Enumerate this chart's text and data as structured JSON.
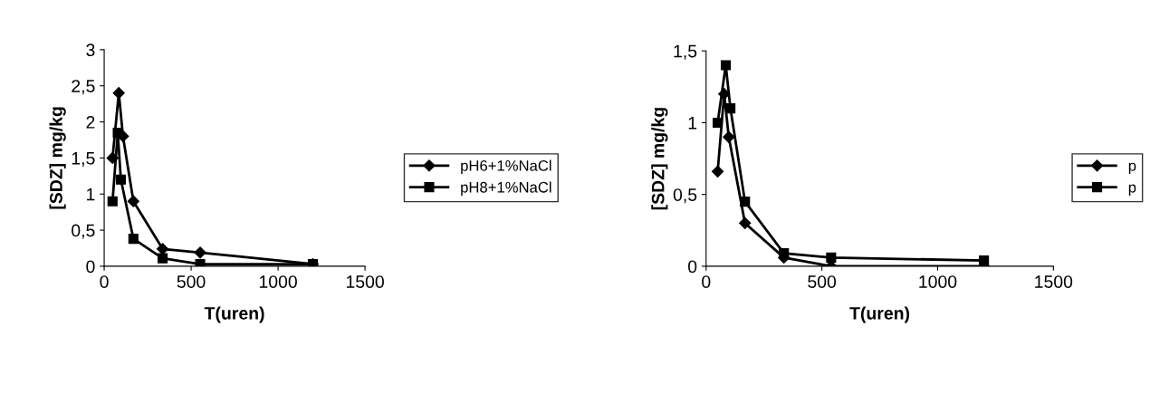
{
  "chart_data": [
    {
      "type": "line",
      "xlabel": "T(uren)",
      "ylabel": "[SDZ] mg/kg",
      "xlim": [
        0,
        1500
      ],
      "xticks": [
        0,
        500,
        1000,
        1500
      ],
      "ylim": [
        0,
        3
      ],
      "yticks": [
        0,
        {
          "value": 0.5,
          "label": "0,5"
        },
        1,
        {
          "value": 1.5,
          "label": "1,5"
        },
        2,
        {
          "value": 2.5,
          "label": "2,5"
        },
        3
      ],
      "legend": "right",
      "grid": false,
      "series": [
        {
          "name": "pH6+1%NaCl",
          "color": "#000000",
          "marker": "diamond",
          "x": [
            48,
            84,
            108,
            168,
            336,
            552,
            1200
          ],
          "values": [
            1.5,
            2.4,
            1.8,
            0.9,
            0.24,
            0.19,
            0.03
          ]
        },
        {
          "name": "pH8+1%NaCl",
          "color": "#000000",
          "marker": "square",
          "x": [
            48,
            78,
            96,
            168,
            336,
            552,
            1200
          ],
          "values": [
            0.9,
            1.85,
            1.2,
            0.38,
            0.11,
            0.03,
            0.03
          ]
        }
      ]
    },
    {
      "type": "line",
      "xlabel": "T(uren)",
      "ylabel": "[SDZ] mg/kg",
      "xlim": [
        0,
        1500
      ],
      "xticks": [
        0,
        500,
        1000,
        1500
      ],
      "ylim": [
        0,
        1.5
      ],
      "yticks": [
        0,
        {
          "value": 0.5,
          "label": "0,5"
        },
        1,
        {
          "value": 1.5,
          "label": "1,5"
        }
      ],
      "legend": "right",
      "grid": false,
      "series": [
        {
          "name": "p",
          "color": "#000000",
          "marker": "diamond",
          "x": [
            50,
            78,
            98,
            168,
            336,
            540,
            1200
          ],
          "values": [
            0.66,
            1.2,
            0.9,
            0.3,
            0.06,
            0.0,
            0.0
          ]
        },
        {
          "name": "p",
          "color": "#000000",
          "marker": "square",
          "x": [
            50,
            85,
            105,
            168,
            336,
            540,
            1200
          ],
          "values": [
            1.0,
            1.4,
            1.1,
            0.45,
            0.09,
            0.06,
            0.04
          ]
        }
      ]
    }
  ]
}
